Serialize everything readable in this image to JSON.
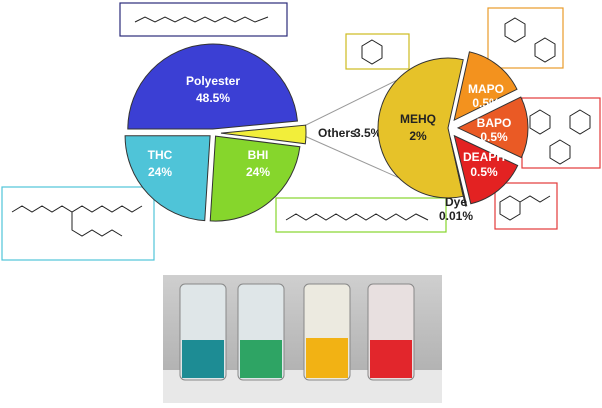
{
  "chart_data": [
    {
      "type": "pie",
      "categories": [
        "Polyester",
        "Others",
        "BHI",
        "THC"
      ],
      "values": [
        48.5,
        3.5,
        24,
        24
      ],
      "value_labels": [
        "48.5%",
        "3.5%",
        "24%",
        "24%"
      ],
      "colors": [
        "#3b3fd4",
        "#f2ee3a",
        "#86d62c",
        "#4fc4d8"
      ]
    },
    {
      "type": "pie",
      "categories": [
        "MEHQ",
        "MAPO",
        "BAPO",
        "DEAPH",
        "Dye"
      ],
      "values": [
        2,
        0.5,
        0.5,
        0.5,
        0.01
      ],
      "value_labels": [
        "2%",
        "0.5%",
        "0.5%",
        "0.5%",
        "0.01%"
      ],
      "colors": [
        "#e6c229",
        "#f3921e",
        "#ea5a25",
        "#e32222",
        "#3a2a1a"
      ]
    }
  ]
}
